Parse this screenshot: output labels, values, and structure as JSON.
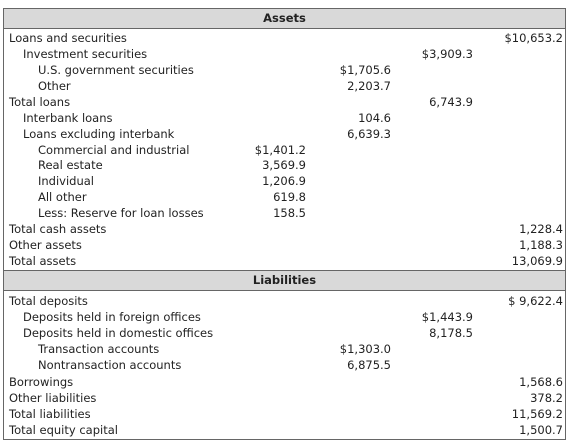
{
  "assets": {
    "title": "Assets",
    "rows": [
      {
        "label": "Loans and securities",
        "values": [
          null,
          null,
          null,
          "$10,653.2"
        ]
      },
      {
        "label": "Investment securities",
        "values": [
          null,
          null,
          "$3,909.3",
          null
        ]
      },
      {
        "label": "U.S. government securities",
        "values": [
          null,
          "$1,705.6",
          null,
          null
        ]
      },
      {
        "label": "Other",
        "values": [
          null,
          "2,203.7",
          null,
          null
        ]
      },
      {
        "label": "Total loans",
        "values": [
          null,
          null,
          "6,743.9",
          null
        ]
      },
      {
        "label": "Interbank loans",
        "values": [
          null,
          "104.6",
          null,
          null
        ]
      },
      {
        "label": "Loans excluding interbank",
        "values": [
          null,
          "6,639.3",
          null,
          null
        ]
      },
      {
        "label": "Commercial and industrial",
        "values": [
          "$1,401.2",
          null,
          null,
          null
        ]
      },
      {
        "label": "Real estate",
        "values": [
          "3,569.9",
          null,
          null,
          null
        ]
      },
      {
        "label": "Individual",
        "values": [
          "1,206.9",
          null,
          null,
          null
        ]
      },
      {
        "label": "All other",
        "values": [
          "619.8",
          null,
          null,
          null
        ]
      },
      {
        "label": "Less: Reserve for loan losses",
        "values": [
          "158.5",
          null,
          null,
          null
        ]
      },
      {
        "label": "Total cash assets",
        "values": [
          null,
          null,
          null,
          "1,228.4"
        ]
      },
      {
        "label": "Other assets",
        "values": [
          null,
          null,
          null,
          "1,188.3"
        ]
      },
      {
        "label": "Total assets",
        "values": [
          null,
          null,
          null,
          "13,069.9"
        ]
      }
    ]
  },
  "liabilities": {
    "title": "Liabilities",
    "rows": [
      {
        "label": "Total deposits",
        "values": [
          null,
          null,
          null,
          "$ 9,622.4"
        ]
      },
      {
        "label": "Deposits held in foreign offices",
        "values": [
          null,
          null,
          "$1,443.9",
          null
        ]
      },
      {
        "label": "Deposits held in domestic offices",
        "values": [
          null,
          null,
          "8,178.5",
          null
        ]
      },
      {
        "label": "Transaction accounts",
        "values": [
          null,
          "$1,303.0",
          null,
          null
        ]
      },
      {
        "label": "Nontransaction accounts",
        "values": [
          null,
          "6,875.5",
          null,
          null
        ]
      },
      {
        "label": "Borrowings",
        "values": [
          null,
          null,
          null,
          "1,568.6"
        ]
      },
      {
        "label": "Other liabilities",
        "values": [
          null,
          null,
          null,
          "378.2"
        ]
      },
      {
        "label": "Total liabilities",
        "values": [
          null,
          null,
          null,
          "11,569.2"
        ]
      },
      {
        "label": "Total equity capital",
        "values": [
          null,
          null,
          null,
          "1,500.7"
        ]
      }
    ]
  }
}
